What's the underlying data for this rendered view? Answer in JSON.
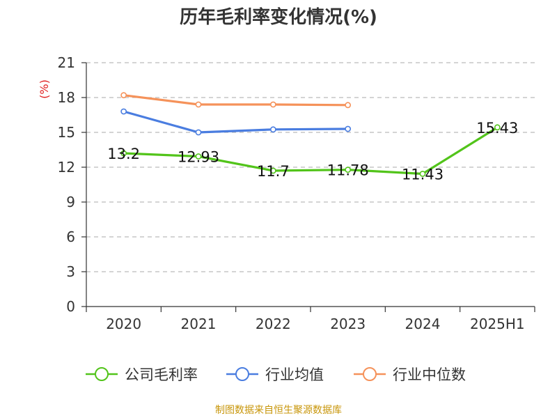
{
  "title": "历年毛利率变化情况(%)",
  "source": "制图数据来自恒生聚源数据库",
  "chart_data": {
    "type": "line",
    "title": "历年毛利率变化情况(%)",
    "ylabel": "(%)",
    "xlabel": "",
    "categories": [
      "2020",
      "2021",
      "2022",
      "2023",
      "2024",
      "2025H1"
    ],
    "ylim": [
      0,
      21
    ],
    "yticks": [
      0,
      3,
      6,
      9,
      12,
      15,
      18,
      21
    ],
    "grid": true,
    "legend_position": "bottom",
    "series": [
      {
        "name": "公司毛利率",
        "color": "#52c41a",
        "values": [
          13.2,
          12.93,
          11.7,
          11.78,
          11.43,
          15.43
        ],
        "labels": [
          "13.2",
          "12.93",
          "11.7",
          "11.78",
          "11.43",
          "15.43"
        ]
      },
      {
        "name": "行业均值",
        "color": "#4a7de0",
        "values": [
          16.8,
          15.0,
          15.25,
          15.3,
          null,
          null
        ]
      },
      {
        "name": "行业中位数",
        "color": "#f5925a",
        "values": [
          18.2,
          17.4,
          17.4,
          17.35,
          null,
          null
        ]
      }
    ]
  }
}
